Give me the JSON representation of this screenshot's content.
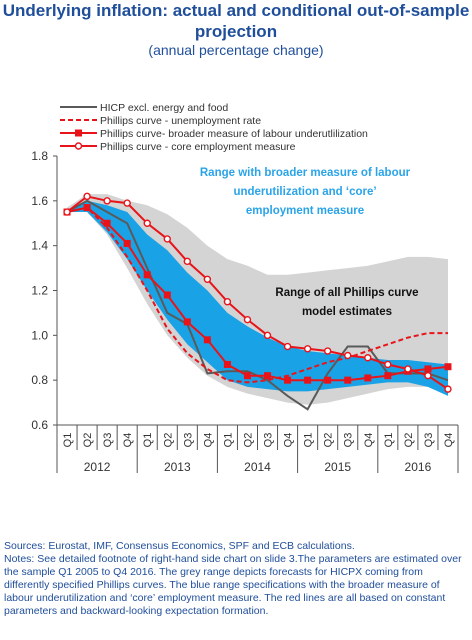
{
  "header": {
    "title": "Underlying inflation: actual and conditional out-of-sample projection",
    "subtitle": "(annual percentage change)"
  },
  "notes": {
    "sources": "Sources: Eurostat, IMF, Consensus Economics, SPF and ECB calculations.",
    "text": "Notes: See detailed footnote of right-hand side chart on slide 3.The parameters are estimated over the sample Q1 2005 to Q4 2016. The grey range depicts forecasts for HICPX coming from differently specified Phillips curves. The blue range specifications with the broader measure of labour underutilization and ‘core’ employment measure. The red lines are all based on constant parameters and backward-looking expectation formation."
  },
  "chart_data": {
    "type": "line",
    "years": [
      "2012",
      "2013",
      "2014",
      "2015",
      "2016"
    ],
    "x": [
      "Q1",
      "Q2",
      "Q3",
      "Q4",
      "Q1",
      "Q2",
      "Q3",
      "Q4",
      "Q1",
      "Q2",
      "Q3",
      "Q4",
      "Q1",
      "Q2",
      "Q3",
      "Q4",
      "Q1",
      "Q2",
      "Q3",
      "Q4"
    ],
    "ylim": [
      0.6,
      1.8
    ],
    "yticks": [
      "0.6",
      "0.8",
      "1.0",
      "1.2",
      "1.4",
      "1.6",
      "1.8"
    ],
    "legend": [
      {
        "name": "HICP excl. energy and food",
        "style": "dark-line"
      },
      {
        "name": "Phillips curve - unemployment rate",
        "style": "red-dashed"
      },
      {
        "name": "Phillips curve- broader measure of labour underutlilization",
        "style": "red-square-markers"
      },
      {
        "name": "Phillips curve - core employment measure",
        "style": "red-circle-markers"
      }
    ],
    "series": [
      {
        "name": "HICP excl. energy and food",
        "color": "#5a5a5a",
        "values": [
          1.55,
          1.6,
          1.55,
          1.5,
          1.3,
          1.1,
          1.05,
          0.83,
          0.84,
          0.84,
          0.8,
          0.73,
          0.67,
          0.83,
          0.95,
          0.95,
          0.83,
          0.83,
          0.83,
          0.8
        ]
      },
      {
        "name": "Phillips curve - unemployment rate",
        "color": "#e8141a",
        "values": [
          1.55,
          1.57,
          1.48,
          1.35,
          1.2,
          1.03,
          0.92,
          0.85,
          0.8,
          0.79,
          0.8,
          0.82,
          0.85,
          0.88,
          0.9,
          0.93,
          0.96,
          0.99,
          1.01,
          1.01
        ]
      },
      {
        "name": "Phillips curve- broader measure of labour underutlilization",
        "color": "#e8141a",
        "values": [
          1.55,
          1.57,
          1.5,
          1.41,
          1.27,
          1.18,
          1.06,
          0.98,
          0.87,
          0.82,
          0.82,
          0.8,
          0.8,
          0.8,
          0.8,
          0.81,
          0.82,
          0.84,
          0.85,
          0.86
        ]
      },
      {
        "name": "Phillips curve - core employment measure",
        "color": "#e8141a",
        "values": [
          1.55,
          1.62,
          1.6,
          1.59,
          1.5,
          1.43,
          1.33,
          1.25,
          1.15,
          1.07,
          1.0,
          0.95,
          0.94,
          0.93,
          0.91,
          0.9,
          0.87,
          0.85,
          0.82,
          0.76
        ]
      }
    ],
    "bands": [
      {
        "name": "grey range",
        "color": "#d4d4d4",
        "upper": [
          1.57,
          1.63,
          1.63,
          1.6,
          1.58,
          1.54,
          1.48,
          1.4,
          1.34,
          1.31,
          1.27,
          1.27,
          1.28,
          1.29,
          1.3,
          1.31,
          1.33,
          1.35,
          1.35,
          1.34
        ],
        "lower": [
          1.55,
          1.55,
          1.45,
          1.3,
          1.14,
          1.0,
          0.9,
          0.82,
          0.77,
          0.74,
          0.72,
          0.7,
          0.69,
          0.7,
          0.72,
          0.74,
          0.76,
          0.77,
          0.77,
          0.75
        ]
      },
      {
        "name": "blue range",
        "color": "#1aa2e6",
        "upper": [
          1.56,
          1.6,
          1.58,
          1.55,
          1.45,
          1.38,
          1.28,
          1.2,
          1.1,
          1.04,
          0.99,
          0.95,
          0.93,
          0.92,
          0.91,
          0.9,
          0.89,
          0.89,
          0.88,
          0.87
        ],
        "lower": [
          1.55,
          1.55,
          1.46,
          1.34,
          1.2,
          1.07,
          0.96,
          0.88,
          0.8,
          0.77,
          0.76,
          0.75,
          0.75,
          0.76,
          0.77,
          0.78,
          0.79,
          0.79,
          0.77,
          0.73
        ]
      }
    ],
    "annotations": [
      {
        "name": "blue-range-annotation",
        "lines": [
          "Range with broader measure of labour",
          "underutilization and ‘core’",
          "employment measure"
        ],
        "color": "#2aa4e8"
      },
      {
        "name": "grey-range-annotation",
        "lines": [
          "Range of all Phillips curve",
          "model estimates"
        ],
        "color": "#111111"
      }
    ]
  }
}
